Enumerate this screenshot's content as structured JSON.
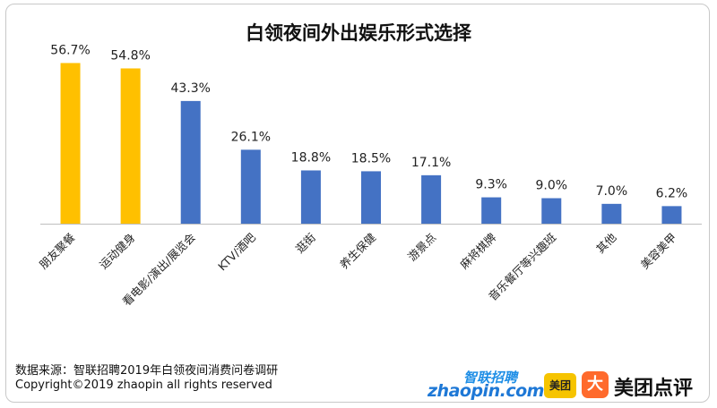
{
  "chart_data": {
    "type": "bar",
    "title": "白领夜间外出娱乐形式选择",
    "categories": [
      "朋友聚餐",
      "运动健身",
      "看电影/演出/展览会",
      "KTV/酒吧",
      "逛街",
      "养生保健",
      "游景点",
      "麻将棋牌",
      "音乐餐厅等兴趣班",
      "其他",
      "美容美甲"
    ],
    "values": [
      56.7,
      54.8,
      43.3,
      26.1,
      18.8,
      18.5,
      17.1,
      9.3,
      9.0,
      7.0,
      6.2
    ],
    "value_labels": [
      "56.7%",
      "54.8%",
      "43.3%",
      "26.1%",
      "18.8%",
      "18.5%",
      "17.1%",
      "9.3%",
      "9.0%",
      "7.0%",
      "6.2%"
    ],
    "unit": "%",
    "ylim": [
      0,
      60
    ],
    "grid": false,
    "colors": {
      "highlight": "#ffc000",
      "default": "#4472c4"
    },
    "highlight_count": 2
  },
  "footer": {
    "source": "数据来源：智联招聘2019年白领夜间消费问卷调研",
    "copyright": "Copyright©2019 zhaopin all rights reserved"
  },
  "logos": {
    "zhaopin_cn": "智联招聘",
    "zhaopin_en": "zhaopin.com",
    "meituan": "美团",
    "dianping_icon": "大",
    "dianping": "美团点评"
  }
}
